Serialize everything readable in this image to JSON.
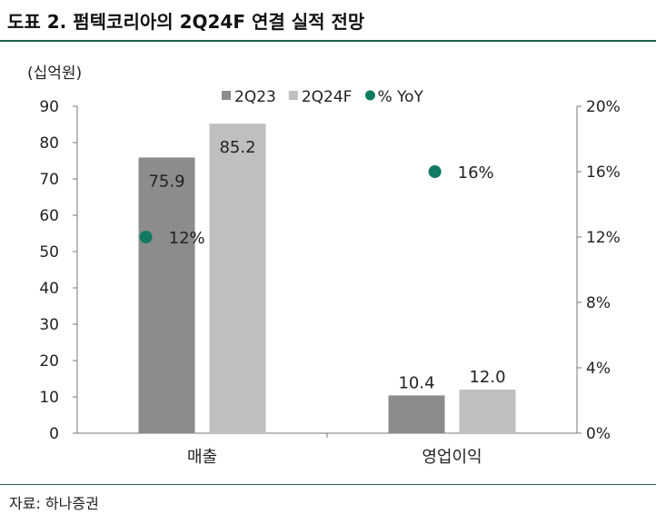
{
  "title": "도표 2. 펌텍코리아의 2Q24F 연결 실적 전망",
  "source": "자료: 하나증권",
  "chart_data": {
    "type": "bar",
    "unit_label": "(십억원)",
    "categories": [
      "매출",
      "영업이익"
    ],
    "series": [
      {
        "name": "2Q23",
        "type": "bar",
        "axis": "left",
        "color": "#8c8c8c",
        "values": [
          75.9,
          10.4
        ],
        "labels": [
          "75.9",
          "10.4"
        ]
      },
      {
        "name": "2Q24F",
        "type": "bar",
        "axis": "left",
        "color": "#bfbfbf",
        "values": [
          85.2,
          12.0
        ],
        "labels": [
          "85.2",
          "12.0"
        ]
      },
      {
        "name": "% YoY",
        "type": "scatter",
        "axis": "right",
        "color": "#127a62",
        "values": [
          12,
          16
        ],
        "labels": [
          "12%",
          "16%"
        ]
      }
    ],
    "y_left": {
      "min": 0,
      "max": 90,
      "ticks": [
        "0",
        "10",
        "20",
        "30",
        "40",
        "50",
        "60",
        "70",
        "80",
        "90"
      ]
    },
    "y_right": {
      "min": 0,
      "max": 20,
      "ticks": [
        "0%",
        "4%",
        "8%",
        "12%",
        "16%",
        "20%"
      ]
    },
    "legend": "top-center",
    "grid": false
  }
}
